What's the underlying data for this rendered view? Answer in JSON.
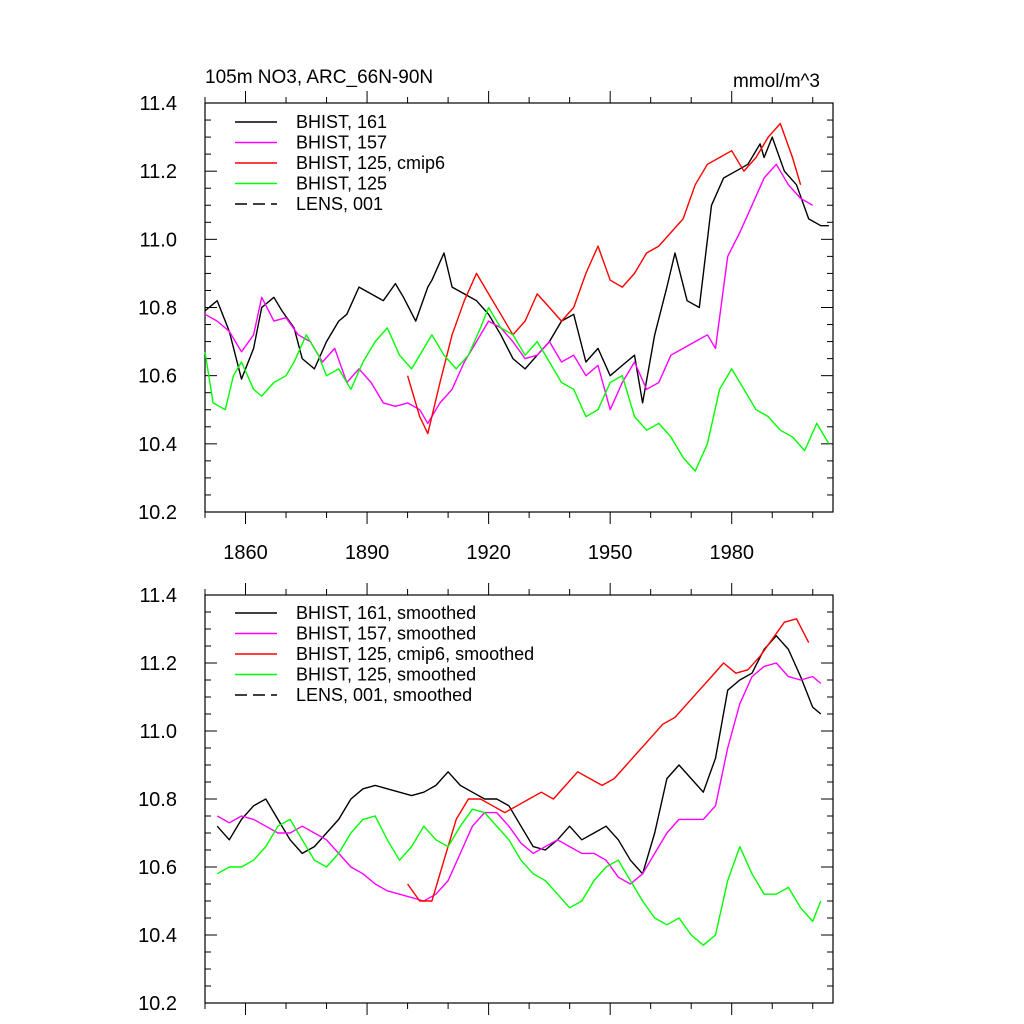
{
  "chart_data": [
    {
      "type": "line",
      "title": "105m NO3, ARC_66N-90N",
      "units": "mmol/m^3",
      "xlim": [
        1850,
        2005
      ],
      "ylim": [
        10.2,
        11.4
      ],
      "yticks": [
        "10.2",
        "10.4",
        "10.6",
        "10.8",
        "11.0",
        "11.2",
        "11.4"
      ],
      "xticks": [
        1860,
        1890,
        1920,
        1950,
        1980
      ],
      "xtick_labels": [
        "1860",
        "1890",
        "1920",
        "1950",
        "1980"
      ],
      "legend": [
        {
          "label": "BHIST, 161",
          "color": "#000000",
          "dash": false
        },
        {
          "label": "BHIST, 157",
          "color": "#ff00ff",
          "dash": false
        },
        {
          "label": "BHIST, 125, cmip6",
          "color": "#ff0000",
          "dash": false
        },
        {
          "label": "BHIST, 125",
          "color": "#00ff00",
          "dash": false
        },
        {
          "label": "LENS, 001",
          "color": "#000000",
          "dash": true
        }
      ],
      "series": [
        {
          "name": "BHIST, 161",
          "color": "#000000",
          "x": [
            1850,
            1853,
            1856,
            1859,
            1862,
            1864,
            1867,
            1869,
            1872,
            1874,
            1877,
            1880,
            1883,
            1885,
            1888,
            1891,
            1894,
            1897,
            1899,
            1902,
            1905,
            1906,
            1909,
            1911,
            1914,
            1917,
            1920,
            1923,
            1926,
            1929,
            1932,
            1935,
            1938,
            1941,
            1944,
            1947,
            1950,
            1953,
            1956,
            1958,
            1961,
            1964,
            1966,
            1969,
            1972,
            1975,
            1978,
            1981,
            1984,
            1987,
            1988,
            1990,
            1993,
            1996,
            1999,
            2002,
            2004
          ],
          "values": [
            10.79,
            10.82,
            10.73,
            10.59,
            10.68,
            10.8,
            10.83,
            10.79,
            10.74,
            10.65,
            10.62,
            10.7,
            10.76,
            10.78,
            10.86,
            10.84,
            10.82,
            10.87,
            10.83,
            10.76,
            10.86,
            10.88,
            10.96,
            10.86,
            10.84,
            10.82,
            10.78,
            10.72,
            10.65,
            10.62,
            10.66,
            10.7,
            10.76,
            10.78,
            10.64,
            10.68,
            10.6,
            10.63,
            10.66,
            10.52,
            10.72,
            10.86,
            10.96,
            10.82,
            10.8,
            11.1,
            11.18,
            11.2,
            11.22,
            11.28,
            11.24,
            11.3,
            11.2,
            11.16,
            11.06,
            11.04,
            11.04
          ]
        },
        {
          "name": "BHIST, 157",
          "color": "#ff00ff",
          "x": [
            1850,
            1853,
            1856,
            1859,
            1862,
            1864,
            1867,
            1870,
            1873,
            1876,
            1879,
            1882,
            1885,
            1888,
            1891,
            1894,
            1897,
            1900,
            1903,
            1905,
            1908,
            1911,
            1914,
            1917,
            1920,
            1923,
            1926,
            1929,
            1932,
            1935,
            1938,
            1941,
            1944,
            1947,
            1950,
            1953,
            1956,
            1959,
            1962,
            1965,
            1968,
            1971,
            1974,
            1976,
            1979,
            1982,
            1985,
            1988,
            1991,
            1994,
            1997,
            2000
          ],
          "values": [
            10.78,
            10.76,
            10.73,
            10.67,
            10.72,
            10.83,
            10.76,
            10.77,
            10.72,
            10.7,
            10.64,
            10.68,
            10.58,
            10.62,
            10.58,
            10.52,
            10.51,
            10.52,
            10.5,
            10.46,
            10.52,
            10.56,
            10.64,
            10.7,
            10.76,
            10.74,
            10.7,
            10.65,
            10.66,
            10.7,
            10.64,
            10.66,
            10.6,
            10.63,
            10.5,
            10.58,
            10.64,
            10.56,
            10.58,
            10.66,
            10.68,
            10.7,
            10.72,
            10.68,
            10.95,
            11.02,
            11.1,
            11.18,
            11.22,
            11.16,
            11.12,
            11.1
          ]
        },
        {
          "name": "BHIST, 125, cmip6",
          "color": "#ff0000",
          "x": [
            1900,
            1903,
            1905,
            1908,
            1911,
            1914,
            1917,
            1920,
            1923,
            1926,
            1929,
            1932,
            1935,
            1938,
            1941,
            1944,
            1947,
            1950,
            1953,
            1956,
            1959,
            1962,
            1965,
            1968,
            1971,
            1974,
            1977,
            1980,
            1983,
            1986,
            1989,
            1992,
            1995,
            1997
          ],
          "values": [
            10.6,
            10.48,
            10.43,
            10.58,
            10.72,
            10.82,
            10.9,
            10.84,
            10.78,
            10.72,
            10.76,
            10.84,
            10.8,
            10.76,
            10.8,
            10.9,
            10.98,
            10.88,
            10.86,
            10.9,
            10.96,
            10.98,
            11.02,
            11.06,
            11.16,
            11.22,
            11.24,
            11.26,
            11.2,
            11.24,
            11.3,
            11.34,
            11.24,
            11.16
          ]
        },
        {
          "name": "BHIST, 125",
          "color": "#00ff00",
          "x": [
            1850,
            1852,
            1855,
            1857,
            1859,
            1862,
            1864,
            1867,
            1870,
            1872,
            1875,
            1878,
            1880,
            1883,
            1886,
            1889,
            1892,
            1895,
            1898,
            1901,
            1904,
            1906,
            1909,
            1912,
            1915,
            1918,
            1920,
            1923,
            1926,
            1929,
            1932,
            1935,
            1938,
            1941,
            1944,
            1947,
            1950,
            1953,
            1956,
            1959,
            1962,
            1965,
            1968,
            1971,
            1974,
            1977,
            1980,
            1983,
            1986,
            1989,
            1992,
            1995,
            1998,
            2001,
            2004
          ],
          "values": [
            10.67,
            10.52,
            10.5,
            10.6,
            10.64,
            10.56,
            10.54,
            10.58,
            10.6,
            10.64,
            10.72,
            10.66,
            10.6,
            10.62,
            10.56,
            10.64,
            10.7,
            10.74,
            10.66,
            10.62,
            10.68,
            10.72,
            10.66,
            10.62,
            10.66,
            10.74,
            10.8,
            10.74,
            10.72,
            10.66,
            10.7,
            10.64,
            10.58,
            10.56,
            10.48,
            10.5,
            10.58,
            10.6,
            10.48,
            10.44,
            10.46,
            10.42,
            10.36,
            10.32,
            10.4,
            10.56,
            10.62,
            10.56,
            10.5,
            10.48,
            10.44,
            10.42,
            10.38,
            10.46,
            10.4
          ]
        }
      ]
    },
    {
      "type": "line",
      "title": "",
      "xlim": [
        1850,
        2005
      ],
      "ylim": [
        10.2,
        11.4
      ],
      "yticks": [
        "10.2",
        "10.4",
        "10.6",
        "10.8",
        "11.0",
        "11.2",
        "11.4"
      ],
      "xticks": [
        1860,
        1890,
        1920,
        1950,
        1980
      ],
      "xtick_labels": [],
      "legend": [
        {
          "label": "BHIST, 161, smoothed",
          "color": "#000000",
          "dash": false
        },
        {
          "label": "BHIST, 157, smoothed",
          "color": "#ff00ff",
          "dash": false
        },
        {
          "label": "BHIST, 125, cmip6, smoothed",
          "color": "#ff0000",
          "dash": false
        },
        {
          "label": "BHIST, 125, smoothed",
          "color": "#00ff00",
          "dash": false
        },
        {
          "label": "LENS, 001, smoothed",
          "color": "#000000",
          "dash": true
        }
      ],
      "series": [
        {
          "name": "BHIST, 161, smoothed",
          "color": "#000000",
          "x": [
            1853,
            1856,
            1859,
            1862,
            1865,
            1868,
            1871,
            1874,
            1877,
            1880,
            1883,
            1886,
            1889,
            1892,
            1895,
            1898,
            1901,
            1904,
            1907,
            1910,
            1913,
            1916,
            1919,
            1922,
            1925,
            1928,
            1931,
            1934,
            1937,
            1940,
            1943,
            1946,
            1949,
            1952,
            1955,
            1958,
            1961,
            1964,
            1967,
            1970,
            1973,
            1976,
            1979,
            1982,
            1985,
            1988,
            1991,
            1994,
            1997,
            2000,
            2002
          ],
          "values": [
            10.72,
            10.68,
            10.74,
            10.78,
            10.8,
            10.74,
            10.68,
            10.64,
            10.66,
            10.7,
            10.74,
            10.8,
            10.83,
            10.84,
            10.83,
            10.82,
            10.81,
            10.82,
            10.84,
            10.88,
            10.84,
            10.82,
            10.8,
            10.8,
            10.78,
            10.72,
            10.66,
            10.65,
            10.68,
            10.72,
            10.68,
            10.7,
            10.72,
            10.68,
            10.62,
            10.58,
            10.7,
            10.86,
            10.9,
            10.86,
            10.82,
            10.92,
            11.12,
            11.15,
            11.17,
            11.24,
            11.28,
            11.24,
            11.16,
            11.07,
            11.05
          ]
        },
        {
          "name": "BHIST, 157, smoothed",
          "color": "#ff00ff",
          "x": [
            1853,
            1856,
            1859,
            1862,
            1865,
            1868,
            1871,
            1874,
            1877,
            1880,
            1883,
            1886,
            1889,
            1892,
            1895,
            1898,
            1901,
            1904,
            1907,
            1910,
            1913,
            1916,
            1919,
            1922,
            1925,
            1928,
            1931,
            1934,
            1937,
            1940,
            1943,
            1946,
            1949,
            1952,
            1955,
            1958,
            1961,
            1964,
            1967,
            1970,
            1973,
            1976,
            1979,
            1982,
            1985,
            1988,
            1991,
            1994,
            1997,
            2000,
            2002
          ],
          "values": [
            10.75,
            10.73,
            10.75,
            10.74,
            10.72,
            10.7,
            10.7,
            10.72,
            10.7,
            10.68,
            10.64,
            10.6,
            10.58,
            10.55,
            10.53,
            10.52,
            10.51,
            10.5,
            10.52,
            10.56,
            10.64,
            10.72,
            10.76,
            10.76,
            10.72,
            10.67,
            10.64,
            10.66,
            10.68,
            10.66,
            10.64,
            10.64,
            10.62,
            10.57,
            10.55,
            10.58,
            10.64,
            10.7,
            10.74,
            10.74,
            10.74,
            10.78,
            10.95,
            11.08,
            11.16,
            11.19,
            11.2,
            11.16,
            11.15,
            11.16,
            11.14
          ]
        },
        {
          "name": "BHIST, 125, cmip6, smoothed",
          "color": "#ff0000",
          "x": [
            1900,
            1903,
            1906,
            1909,
            1912,
            1915,
            1918,
            1921,
            1924,
            1927,
            1930,
            1933,
            1936,
            1939,
            1942,
            1945,
            1948,
            1951,
            1954,
            1957,
            1960,
            1963,
            1966,
            1969,
            1972,
            1975,
            1978,
            1981,
            1984,
            1987,
            1990,
            1993,
            1996,
            1999
          ],
          "values": [
            10.55,
            10.5,
            10.5,
            10.62,
            10.74,
            10.8,
            10.8,
            10.78,
            10.76,
            10.78,
            10.8,
            10.82,
            10.8,
            10.84,
            10.88,
            10.86,
            10.84,
            10.86,
            10.9,
            10.94,
            10.98,
            11.02,
            11.04,
            11.08,
            11.12,
            11.16,
            11.2,
            11.17,
            11.18,
            11.22,
            11.27,
            11.32,
            11.33,
            11.26
          ]
        },
        {
          "name": "BHIST, 125, smoothed",
          "color": "#00ff00",
          "x": [
            1853,
            1856,
            1859,
            1862,
            1865,
            1868,
            1871,
            1874,
            1877,
            1880,
            1883,
            1886,
            1889,
            1892,
            1895,
            1898,
            1901,
            1904,
            1907,
            1910,
            1913,
            1916,
            1919,
            1922,
            1925,
            1928,
            1931,
            1934,
            1937,
            1940,
            1943,
            1946,
            1949,
            1952,
            1955,
            1958,
            1961,
            1964,
            1967,
            1970,
            1973,
            1976,
            1979,
            1982,
            1985,
            1988,
            1991,
            1994,
            1997,
            2000,
            2002
          ],
          "values": [
            10.58,
            10.6,
            10.6,
            10.62,
            10.66,
            10.72,
            10.74,
            10.68,
            10.62,
            10.6,
            10.64,
            10.7,
            10.74,
            10.75,
            10.68,
            10.62,
            10.66,
            10.72,
            10.68,
            10.66,
            10.72,
            10.77,
            10.76,
            10.72,
            10.68,
            10.62,
            10.58,
            10.56,
            10.52,
            10.48,
            10.5,
            10.56,
            10.6,
            10.62,
            10.56,
            10.5,
            10.45,
            10.43,
            10.45,
            10.4,
            10.37,
            10.4,
            10.56,
            10.66,
            10.58,
            10.52,
            10.52,
            10.54,
            10.48,
            10.44,
            10.5
          ]
        }
      ]
    }
  ]
}
